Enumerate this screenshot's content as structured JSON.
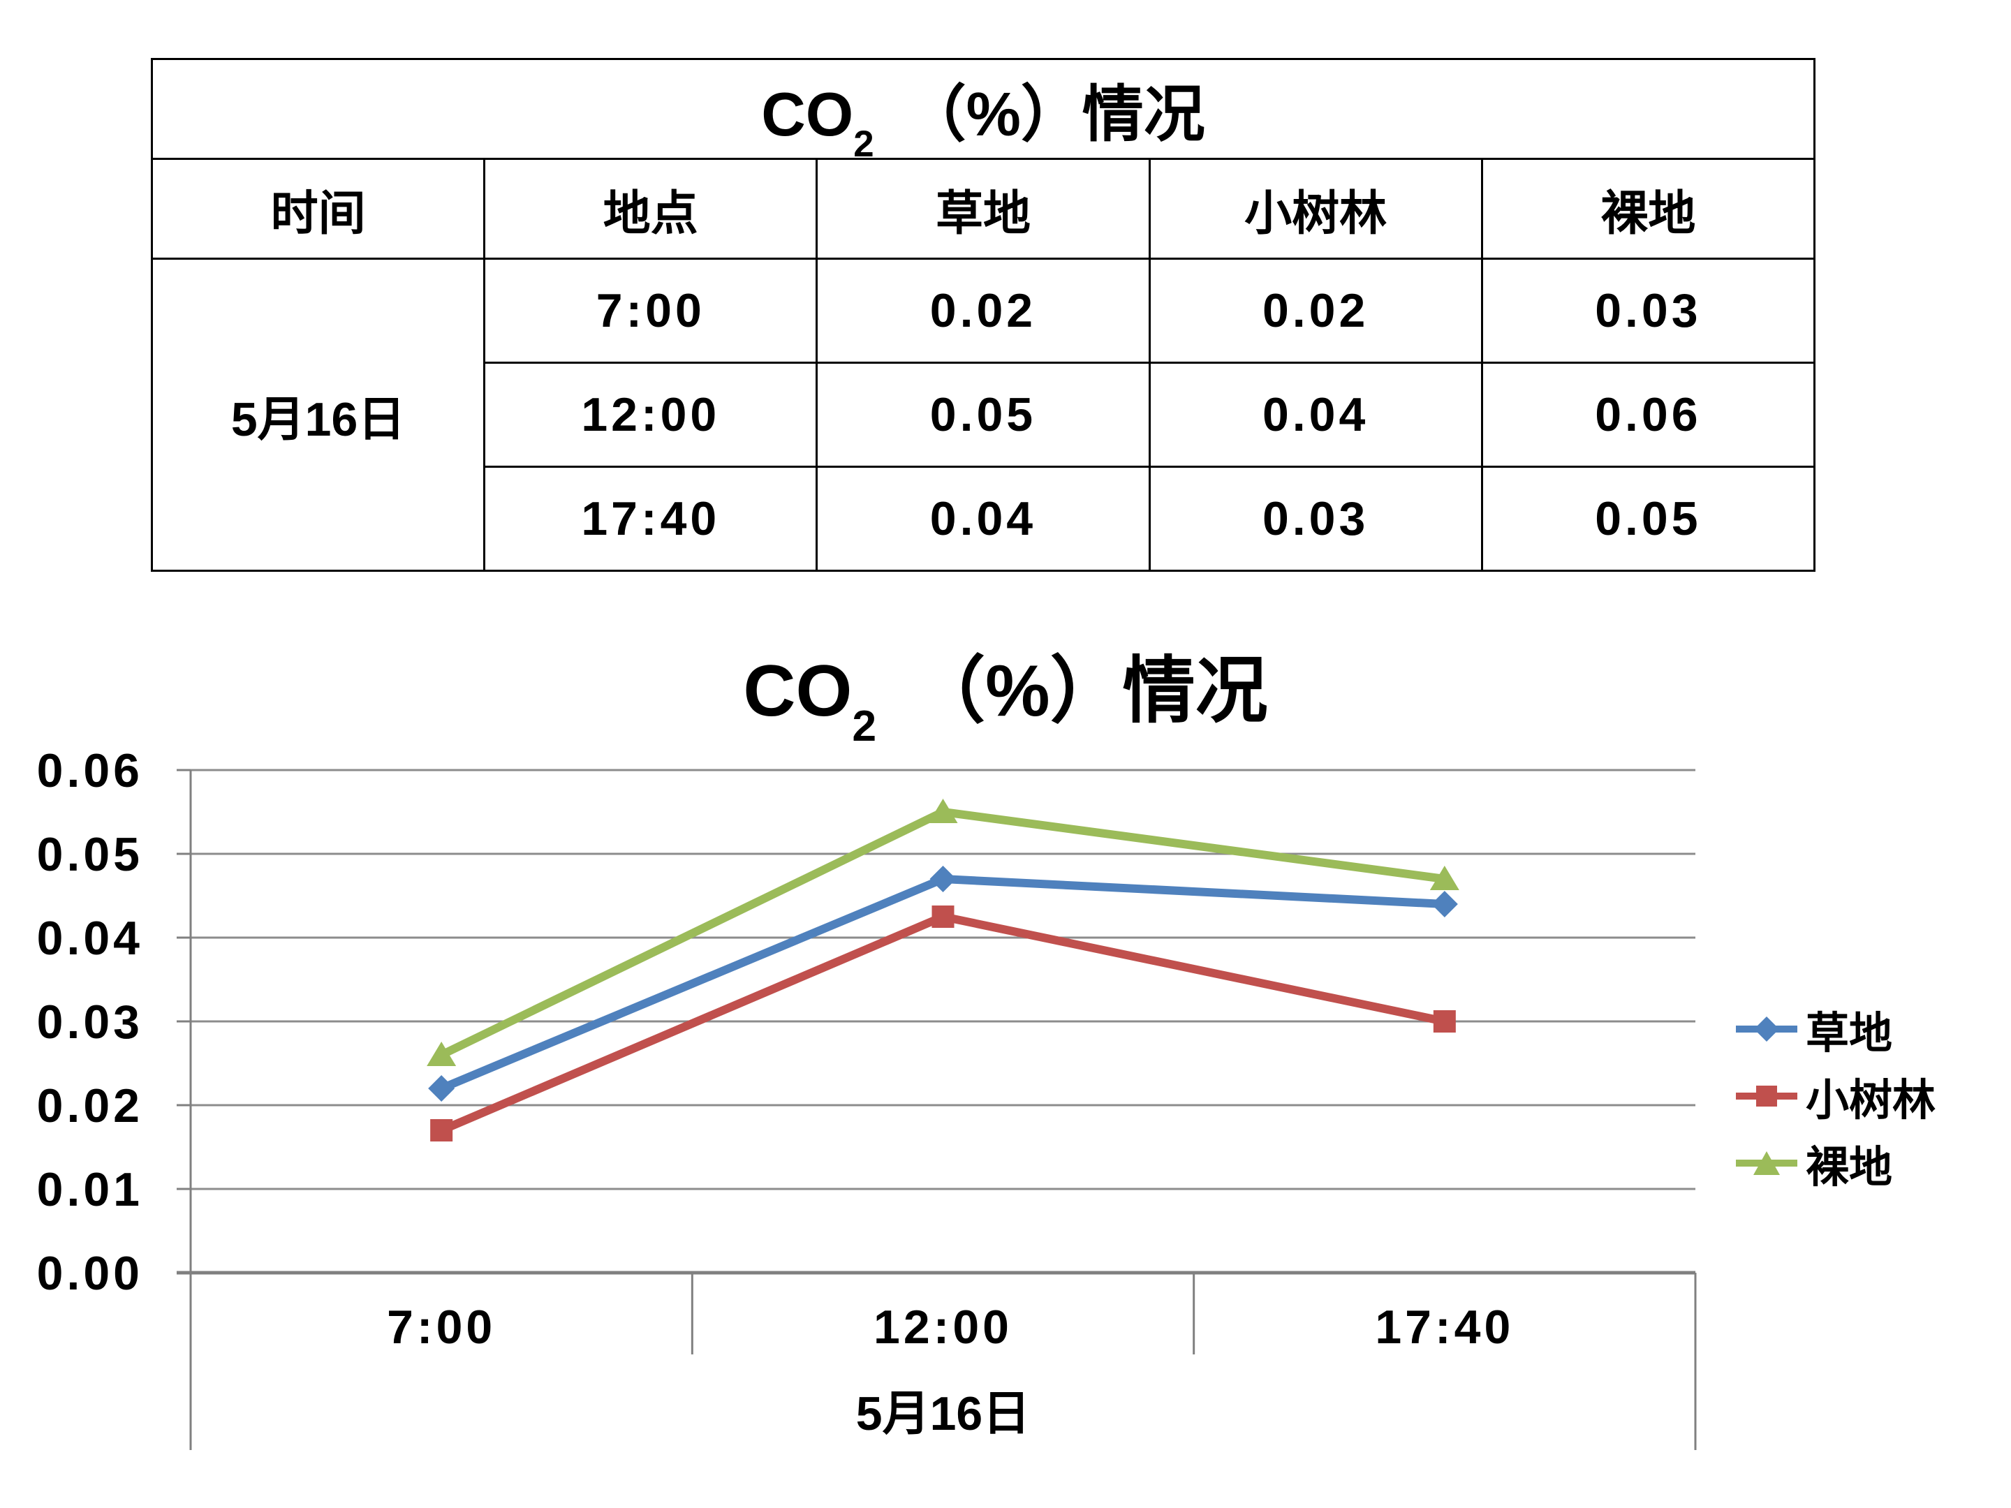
{
  "table": {
    "title_prefix": "CO",
    "title_sub": "2",
    "title_suffix": "　（%）情况",
    "headers": [
      "时间",
      "地点",
      "草地",
      "小树林",
      "裸地"
    ],
    "group_label": "5月16日",
    "rows": [
      {
        "time": "7:00",
        "values": [
          "0.02",
          "0.02",
          "0.03"
        ]
      },
      {
        "time": "12:00",
        "values": [
          "0.05",
          "0.04",
          "0.06"
        ]
      },
      {
        "time": "17:40",
        "values": [
          "0.04",
          "0.03",
          "0.05"
        ]
      }
    ]
  },
  "chart_data": {
    "type": "line",
    "title": "CO2 （%）情况",
    "title_prefix": "CO",
    "title_sub": "2",
    "title_suffix": "　（%）情况",
    "categories": [
      "7:00",
      "12:00",
      "17:40"
    ],
    "x_group_label": "5月16日",
    "xlabel": "",
    "ylabel": "",
    "ylim": [
      0,
      0.06
    ],
    "yticks": [
      "0.00",
      "0.01",
      "0.02",
      "0.03",
      "0.04",
      "0.05",
      "0.06"
    ],
    "grid": true,
    "legend_position": "right",
    "series": [
      {
        "id": "caodi",
        "name": "草地",
        "marker": "diamond",
        "color": "#4F81BD",
        "values": [
          0.022,
          0.047,
          0.044
        ]
      },
      {
        "id": "xiaoshulin",
        "name": "小树林",
        "marker": "square",
        "color": "#C0504D",
        "values": [
          0.017,
          0.0425,
          0.03
        ]
      },
      {
        "id": "luodi",
        "name": "裸地",
        "marker": "triangle",
        "color": "#9BBB59",
        "values": [
          0.026,
          0.055,
          0.047
        ]
      }
    ],
    "colors": {
      "gridline": "#8C8C8C",
      "axis": "#808080",
      "text": "#000000"
    }
  }
}
